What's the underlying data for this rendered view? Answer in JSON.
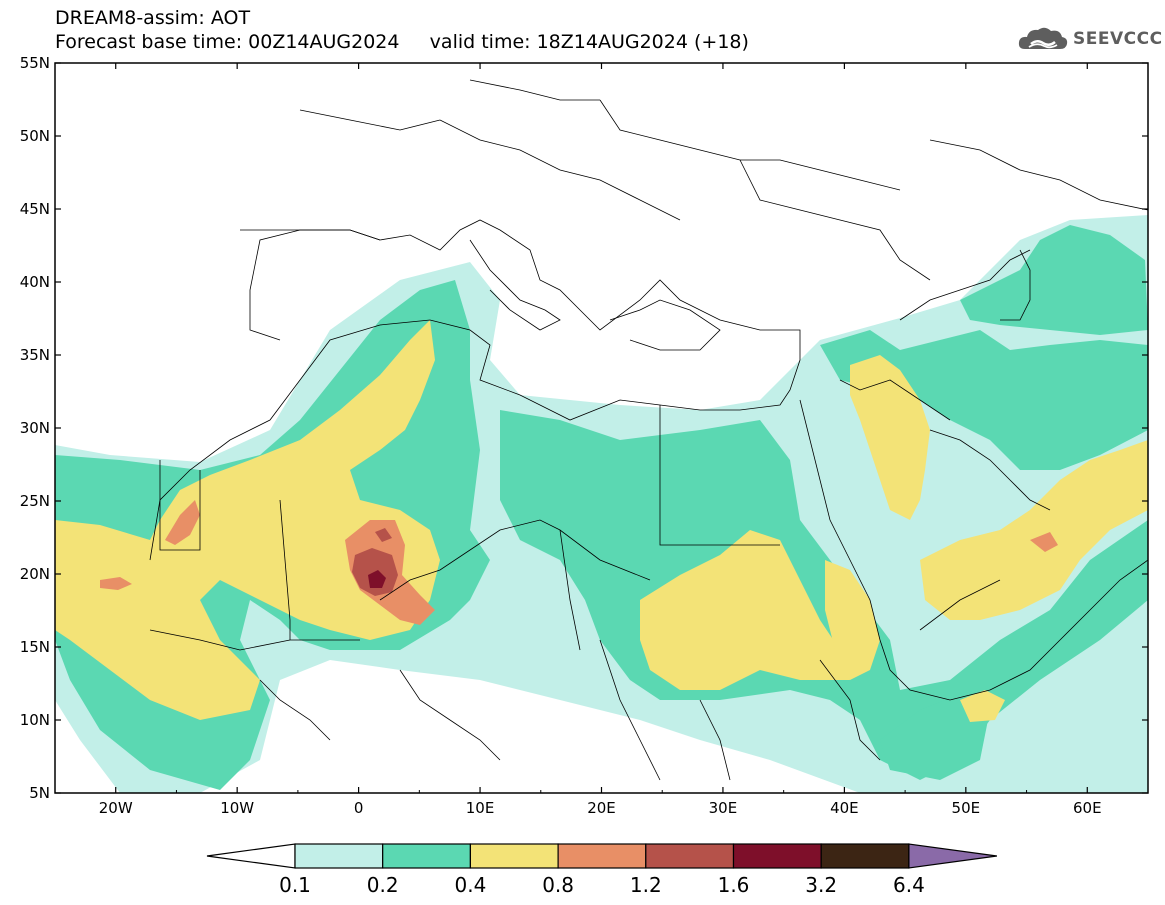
{
  "title": {
    "line1": "DREAM8-assim: AOT",
    "line2": "Forecast base time: 00Z14AUG2024     valid time: 18Z14AUG2024 (+18)"
  },
  "logo": {
    "text": "SEEVCCC",
    "icon": "cloud-icon",
    "color": "#5e5e5e"
  },
  "map": {
    "lat_labels": [
      "55N",
      "50N",
      "45N",
      "40N",
      "35N",
      "30N",
      "25N",
      "20N",
      "15N",
      "10N",
      "5N"
    ],
    "lat_values": [
      55,
      50,
      45,
      40,
      35,
      30,
      25,
      20,
      15,
      10,
      5
    ],
    "lon_labels": [
      "20W",
      "10W",
      "0",
      "10E",
      "20E",
      "30E",
      "40E",
      "50E",
      "60E"
    ],
    "lon_values": [
      -20,
      -10,
      0,
      10,
      20,
      30,
      40,
      50,
      60
    ],
    "lon_range": [
      -25,
      65
    ],
    "lat_range": [
      5,
      55
    ]
  },
  "colorbar": {
    "labels": [
      "0.1",
      "0.2",
      "0.4",
      "0.8",
      "1.2",
      "1.6",
      "3.2",
      "6.4"
    ],
    "colors": [
      "#c2efe8",
      "#5bd8b2",
      "#f3e377",
      "#e88f66",
      "#b5524a",
      "#7e0f2a",
      "#3c2514"
    ],
    "under_color": "#ffffff",
    "over_color": "#8a6aa8"
  }
}
